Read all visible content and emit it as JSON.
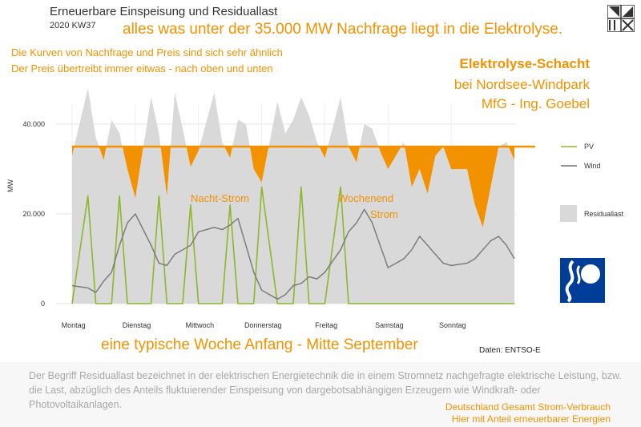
{
  "title": "Erneuerbare Einspeisung und Residuallast",
  "subtitle": "2020 KW37",
  "headline": "alles was unter der 35.000 MW Nachfrage liegt in die Elektrolyse.",
  "note1": "Die Kurven von Nachfrage und Preis sind sich sehr ähnlich",
  "note2": "Der Preis übertreibt immer eitwas - nach oben und unten",
  "right_title": [
    "Elektrolyse-Schacht",
    "bei Nordsee-Windpark",
    "MfG - Ing. Goebel"
  ],
  "bottom_line": "eine typische Woche Anfang - Mitte September",
  "source": "Daten: ENTSO-E",
  "footer_desc": "Der Begriff Residuallast bezeichnet in der elektrischen Energietechnik die in einem Stromnetz nachgefragte elektrische Leistung, bzw. die Last, abzüglich des Anteils fluktuierender Einspeisung von dargebotsabhängigen Erzeugern wie Windkraft- oder Photovoltaikanlagen.",
  "footer_right": [
    "Deutschland Gesamt Strom-Verbrauch",
    "Hier mit Anteil erneuerbarer Energien"
  ],
  "colors": {
    "pv": "#8cb82b",
    "wind": "#777777",
    "residual": "#d9d9d9",
    "accent": "#f39200",
    "emblem": "#003d99"
  },
  "icons": {
    "logo": "grid-logo-icon",
    "emblem": "wave-emblem-icon"
  },
  "chart_data": {
    "type": "area",
    "ylabel": "MW",
    "ylim": [
      0,
      52000
    ],
    "yticks": [
      0,
      20000,
      40000
    ],
    "ytick_labels": [
      "0",
      "20.000",
      "40.000"
    ],
    "x_day_labels": [
      "Montag",
      "Dienstag",
      "Mittwoch",
      "Donnerstag",
      "Freitag",
      "Samstag",
      "Sonntag"
    ],
    "threshold": 35000,
    "annotations": [
      "Nacht-Strom",
      "Wochenend",
      "Strom"
    ],
    "legend": [
      "PV",
      "Wind",
      "Residuallast"
    ],
    "legend_placement": "right",
    "hours": [
      0,
      6,
      9,
      12,
      15,
      18,
      21,
      24,
      30,
      33,
      36,
      39,
      42,
      45,
      48,
      54,
      57,
      60,
      63,
      66,
      69,
      72,
      78,
      81,
      84,
      87,
      90,
      93,
      96,
      102,
      105,
      108,
      111,
      114,
      117,
      120,
      126,
      129,
      132,
      135,
      138,
      141,
      144,
      150,
      153,
      156,
      159,
      162,
      165,
      168
    ],
    "series": [
      {
        "name": "Residuallast",
        "values": [
          33000,
          48000,
          37000,
          32000,
          41000,
          38000,
          30000,
          23500,
          46000,
          38000,
          24000,
          47000,
          39000,
          30500,
          34000,
          47000,
          36000,
          32500,
          41000,
          40000,
          30000,
          27000,
          45000,
          38000,
          41000,
          46000,
          42000,
          36000,
          32500,
          46000,
          35000,
          31500,
          40000,
          39000,
          34000,
          30000,
          36000,
          26000,
          30000,
          24500,
          33000,
          35000,
          30000,
          30000,
          22000,
          17000,
          26000,
          35000,
          36000,
          32000
        ]
      },
      {
        "name": "Wind",
        "values": [
          4000,
          3500,
          2500,
          5000,
          7000,
          13000,
          18000,
          20000,
          13000,
          9000,
          8500,
          11000,
          12000,
          13000,
          16000,
          17000,
          16500,
          17500,
          19000,
          13000,
          7000,
          3000,
          1000,
          2000,
          4000,
          4500,
          6000,
          5500,
          7000,
          12000,
          16000,
          18000,
          21000,
          18000,
          13000,
          8000,
          10000,
          12000,
          15000,
          13000,
          11000,
          9000,
          8500,
          9000,
          10000,
          12000,
          14000,
          15000,
          13000,
          10000
        ]
      },
      {
        "name": "PV",
        "values": [
          0,
          24000,
          0,
          0,
          0,
          24000,
          0,
          0,
          0,
          24000,
          0,
          0,
          0,
          22000,
          0,
          0,
          0,
          22000,
          0,
          0,
          0,
          26000,
          0,
          0,
          0,
          26000,
          0,
          0,
          0,
          26000,
          0,
          0,
          0,
          0,
          0,
          0,
          0,
          0,
          0,
          0,
          0,
          0,
          0,
          0,
          0,
          0,
          0,
          0,
          0,
          0
        ]
      }
    ]
  }
}
